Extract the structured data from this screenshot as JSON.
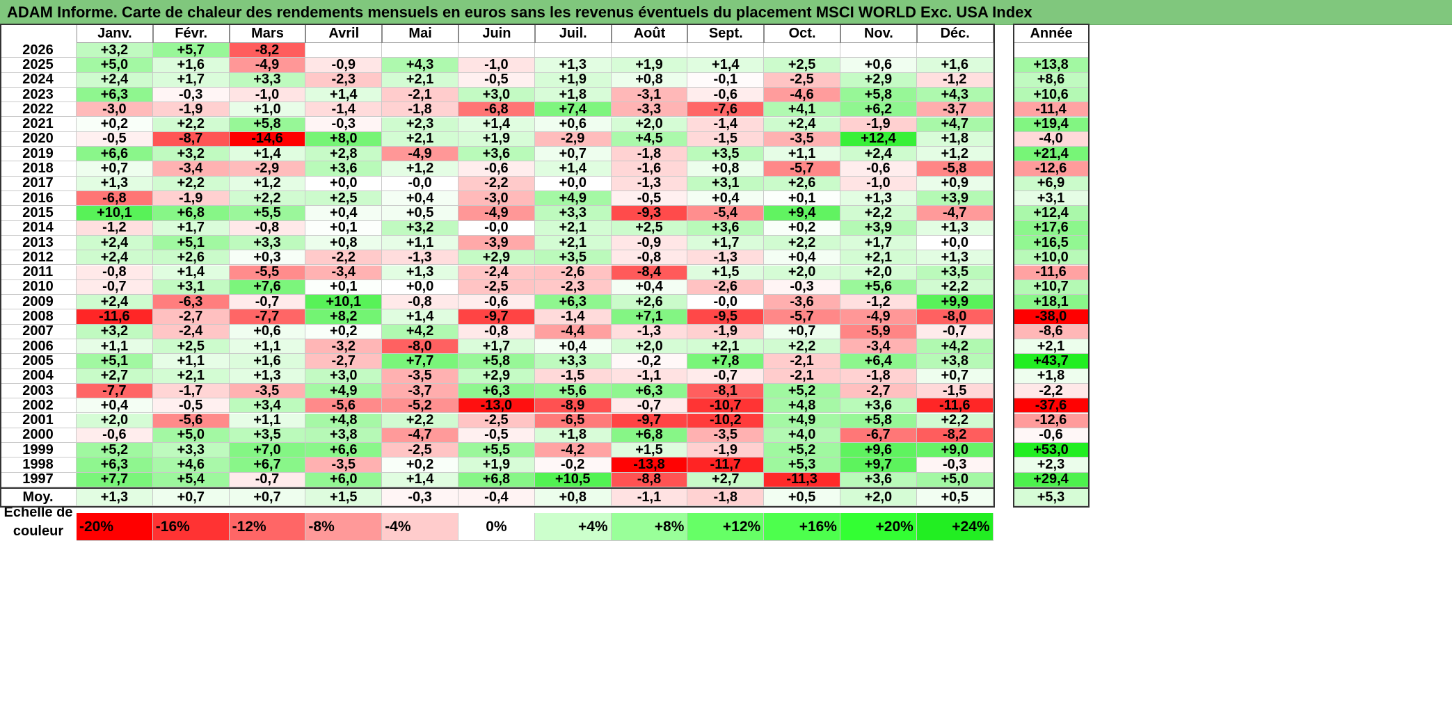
{
  "title": "ADAM Informe. Carte de chaleur des rendements mensuels en euros sans les revenus éventuels du placement MSCI WORLD Exc. USA Index",
  "chart_data": {
    "type": "heatmap",
    "title": "ADAM Informe. Carte de chaleur des rendements mensuels en euros sans les revenus éventuels du placement MSCI WORLD Exc. USA Index",
    "columns": [
      "Janv.",
      "Févr.",
      "Mars",
      "Avril",
      "Mai",
      "Juin",
      "Juil.",
      "Août",
      "Sept.",
      "Oct.",
      "Nov.",
      "Déc."
    ],
    "annual_header": "Année",
    "average_label": "Moy.",
    "rows": [
      {
        "year": "2026",
        "months": [
          "+3,2",
          "+5,7",
          "-8,2",
          "",
          "",
          "",
          "",
          "",
          "",
          "",
          "",
          ""
        ],
        "annual": ""
      },
      {
        "year": "2025",
        "months": [
          "+5,0",
          "+1,6",
          "-4,9",
          "-0,9",
          "+4,3",
          "-1,0",
          "+1,3",
          "+1,9",
          "+1,4",
          "+2,5",
          "+0,6",
          "+1,6"
        ],
        "annual": "+13,8"
      },
      {
        "year": "2024",
        "months": [
          "+2,4",
          "+1,7",
          "+3,3",
          "-2,3",
          "+2,1",
          "-0,5",
          "+1,9",
          "+0,8",
          "-0,1",
          "-2,5",
          "+2,9",
          "-1,2"
        ],
        "annual": "+8,6"
      },
      {
        "year": "2023",
        "months": [
          "+6,3",
          "-0,3",
          "-1,0",
          "+1,4",
          "-2,1",
          "+3,0",
          "+1,8",
          "-3,1",
          "-0,6",
          "-4,6",
          "+5,8",
          "+4,3"
        ],
        "annual": "+10,6"
      },
      {
        "year": "2022",
        "months": [
          "-3,0",
          "-1,9",
          "+1,0",
          "-1,4",
          "-1,8",
          "-6,8",
          "+7,4",
          "-3,3",
          "-7,6",
          "+4,1",
          "+6,2",
          "-3,7"
        ],
        "annual": "-11,4"
      },
      {
        "year": "2021",
        "months": [
          "+0,2",
          "+2,2",
          "+5,8",
          "-0,3",
          "+2,3",
          "+1,4",
          "+0,6",
          "+2,0",
          "-1,4",
          "+2,4",
          "-1,9",
          "+4,7"
        ],
        "annual": "+19,4"
      },
      {
        "year": "2020",
        "months": [
          "-0,5",
          "-8,7",
          "-14,6",
          "+8,0",
          "+2,1",
          "+1,9",
          "-2,9",
          "+4,5",
          "-1,5",
          "-3,5",
          "+12,4",
          "+1,8"
        ],
        "annual": "-4,0"
      },
      {
        "year": "2019",
        "months": [
          "+6,6",
          "+3,2",
          "+1,4",
          "+2,8",
          "-4,9",
          "+3,6",
          "+0,7",
          "-1,8",
          "+3,5",
          "+1,1",
          "+2,4",
          "+1,2"
        ],
        "annual": "+21,4"
      },
      {
        "year": "2018",
        "months": [
          "+0,7",
          "-3,4",
          "-2,9",
          "+3,6",
          "+1,2",
          "-0,6",
          "+1,4",
          "-1,6",
          "+0,8",
          "-5,7",
          "-0,6",
          "-5,8"
        ],
        "annual": "-12,6"
      },
      {
        "year": "2017",
        "months": [
          "+1,3",
          "+2,2",
          "+1,2",
          "+0,0",
          "-0,0",
          "-2,2",
          "+0,0",
          "-1,3",
          "+3,1",
          "+2,6",
          "-1,0",
          "+0,9"
        ],
        "annual": "+6,9"
      },
      {
        "year": "2016",
        "months": [
          "-6,8",
          "-1,9",
          "+2,2",
          "+2,5",
          "+0,4",
          "-3,0",
          "+4,9",
          "-0,5",
          "+0,4",
          "+0,1",
          "+1,3",
          "+3,9"
        ],
        "annual": "+3,1"
      },
      {
        "year": "2015",
        "months": [
          "+10,1",
          "+6,8",
          "+5,5",
          "+0,4",
          "+0,5",
          "-4,9",
          "+3,3",
          "-9,3",
          "-5,4",
          "+9,4",
          "+2,2",
          "-4,7"
        ],
        "annual": "+12,4"
      },
      {
        "year": "2014",
        "months": [
          "-1,2",
          "+1,7",
          "-0,8",
          "+0,1",
          "+3,2",
          "-0,0",
          "+2,1",
          "+2,5",
          "+3,6",
          "+0,2",
          "+3,9",
          "+1,3"
        ],
        "annual": "+17,6"
      },
      {
        "year": "2013",
        "months": [
          "+2,4",
          "+5,1",
          "+3,3",
          "+0,8",
          "+1,1",
          "-3,9",
          "+2,1",
          "-0,9",
          "+1,7",
          "+2,2",
          "+1,7",
          "+0,0"
        ],
        "annual": "+16,5"
      },
      {
        "year": "2012",
        "months": [
          "+2,4",
          "+2,6",
          "+0,3",
          "-2,2",
          "-1,3",
          "+2,9",
          "+3,5",
          "-0,8",
          "-1,3",
          "+0,4",
          "+2,1",
          "+1,3"
        ],
        "annual": "+10,0"
      },
      {
        "year": "2011",
        "months": [
          "-0,8",
          "+1,4",
          "-5,5",
          "-3,4",
          "+1,3",
          "-2,4",
          "-2,6",
          "-8,4",
          "+1,5",
          "+2,0",
          "+2,0",
          "+3,5"
        ],
        "annual": "-11,6"
      },
      {
        "year": "2010",
        "months": [
          "-0,7",
          "+3,1",
          "+7,6",
          "+0,1",
          "+0,0",
          "-2,5",
          "-2,3",
          "+0,4",
          "-2,6",
          "-0,3",
          "+5,6",
          "+2,2"
        ],
        "annual": "+10,7"
      },
      {
        "year": "2009",
        "months": [
          "+2,4",
          "-6,3",
          "-0,7",
          "+10,1",
          "-0,8",
          "-0,6",
          "+6,3",
          "+2,6",
          "-0,0",
          "-3,6",
          "-1,2",
          "+9,9"
        ],
        "annual": "+18,1"
      },
      {
        "year": "2008",
        "months": [
          "-11,6",
          "-2,7",
          "-7,7",
          "+8,2",
          "+1,4",
          "-9,7",
          "-1,4",
          "+7,1",
          "-9,5",
          "-5,7",
          "-4,9",
          "-8,0"
        ],
        "annual": "-38,0"
      },
      {
        "year": "2007",
        "months": [
          "+3,2",
          "-2,4",
          "+0,6",
          "+0,2",
          "+4,2",
          "-0,8",
          "-4,4",
          "-1,3",
          "-1,9",
          "+0,7",
          "-5,9",
          "-0,7"
        ],
        "annual": "-8,6"
      },
      {
        "year": "2006",
        "months": [
          "+1,1",
          "+2,5",
          "+1,1",
          "-3,2",
          "-8,0",
          "+1,7",
          "+0,4",
          "+2,0",
          "+2,1",
          "+2,2",
          "-3,4",
          "+4,2"
        ],
        "annual": "+2,1"
      },
      {
        "year": "2005",
        "months": [
          "+5,1",
          "+1,1",
          "+1,6",
          "-2,7",
          "+7,7",
          "+5,8",
          "+3,3",
          "-0,2",
          "+7,8",
          "-2,1",
          "+6,4",
          "+3,8"
        ],
        "annual": "+43,7"
      },
      {
        "year": "2004",
        "months": [
          "+2,7",
          "+2,1",
          "+1,3",
          "+3,0",
          "-3,5",
          "+2,9",
          "-1,5",
          "-1,1",
          "-0,7",
          "-2,1",
          "-1,8",
          "+0,7"
        ],
        "annual": "+1,8"
      },
      {
        "year": "2003",
        "months": [
          "-7,7",
          "-1,7",
          "-3,5",
          "+4,9",
          "-3,7",
          "+6,3",
          "+5,6",
          "+6,3",
          "-8,1",
          "+5,2",
          "-2,7",
          "-1,5"
        ],
        "annual": "-2,2"
      },
      {
        "year": "2002",
        "months": [
          "+0,4",
          "-0,5",
          "+3,4",
          "-5,6",
          "-5,2",
          "-13,0",
          "-8,9",
          "-0,7",
          "-10,7",
          "+4,8",
          "+3,6",
          "-11,6"
        ],
        "annual": "-37,6"
      },
      {
        "year": "2001",
        "months": [
          "+2,0",
          "-5,6",
          "+1,1",
          "+4,8",
          "+2,2",
          "-2,5",
          "-6,5",
          "-9,7",
          "-10,2",
          "+4,9",
          "+5,8",
          "+2,2"
        ],
        "annual": "-12,6"
      },
      {
        "year": "2000",
        "months": [
          "-0,6",
          "+5,0",
          "+3,5",
          "+3,8",
          "-4,7",
          "-0,5",
          "+1,8",
          "+6,8",
          "-3,5",
          "+4,0",
          "-6,7",
          "-8,2"
        ],
        "annual": "-0,6"
      },
      {
        "year": "1999",
        "months": [
          "+5,2",
          "+3,3",
          "+7,0",
          "+6,6",
          "-2,5",
          "+5,5",
          "-4,2",
          "+1,5",
          "-1,9",
          "+5,2",
          "+9,6",
          "+9,0"
        ],
        "annual": "+53,0"
      },
      {
        "year": "1998",
        "months": [
          "+6,3",
          "+4,6",
          "+6,7",
          "-3,5",
          "+0,2",
          "+1,9",
          "-0,2",
          "-13,8",
          "-11,7",
          "+5,3",
          "+9,7",
          "-0,3"
        ],
        "annual": "+2,3"
      },
      {
        "year": "1997",
        "months": [
          "+7,7",
          "+5,4",
          "-0,7",
          "+6,0",
          "+1,4",
          "+6,8",
          "+10,5",
          "-8,8",
          "+2,7",
          "-11,3",
          "+3,6",
          "+5,0"
        ],
        "annual": "+29,4"
      }
    ],
    "averages": {
      "months": [
        "+1,3",
        "+0,7",
        "+0,7",
        "+1,5",
        "-0,3",
        "-0,4",
        "+0,8",
        "-1,1",
        "-1,8",
        "+0,5",
        "+2,0",
        "+0,5"
      ],
      "annual": "+5,3"
    },
    "color_scale": {
      "label": "Echelle de couleur",
      "stops": [
        {
          "label": "-20%",
          "color": "#ff0000"
        },
        {
          "label": "-16%",
          "color": "#ff3333"
        },
        {
          "label": "-12%",
          "color": "#ff6666"
        },
        {
          "label": "-8%",
          "color": "#ff9999"
        },
        {
          "label": "-4%",
          "color": "#ffcccc"
        },
        {
          "label": "0%",
          "color": "#ffffff"
        },
        {
          "label": "+4%",
          "color": "#ccffcc"
        },
        {
          "label": "+8%",
          "color": "#99ff99"
        },
        {
          "label": "+12%",
          "color": "#66ff66"
        },
        {
          "label": "+16%",
          "color": "#4dff4d"
        },
        {
          "label": "+20%",
          "color": "#33ff33"
        },
        {
          "label": "+24%",
          "color": "#22ee22"
        }
      ]
    }
  }
}
